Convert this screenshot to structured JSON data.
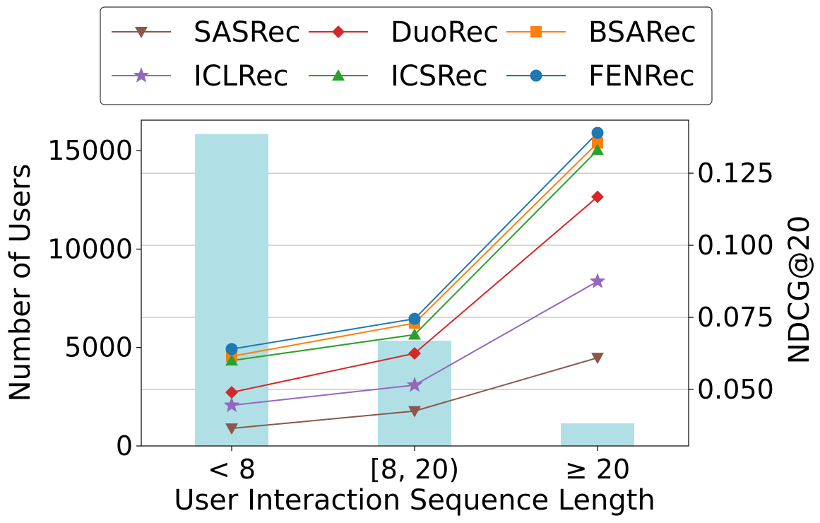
{
  "chart_data": {
    "type": "bar+line",
    "categories": [
      "< 8",
      "[8, 20)",
      "≥ 20"
    ],
    "xlabel": "User Interaction Sequence Length",
    "bars": {
      "name": "Number of Users",
      "values": [
        15850,
        5350,
        1150
      ],
      "color": "#b0e0e6"
    },
    "ylabel_left": "Number of Users",
    "ylim_left": [
      0,
      16550
    ],
    "yticks_left": [
      0,
      5000,
      10000,
      15000
    ],
    "ylabel_right": "NDCG@20",
    "ylim_right": [
      0.0304,
      0.1434
    ],
    "yticks_right": [
      0.05,
      0.075,
      0.1,
      0.125
    ],
    "ytick_labels_right": [
      "0.050",
      "0.075",
      "0.100",
      "0.125"
    ],
    "grid": "horizontal (right axis)",
    "legend_position": "top, outside",
    "series": [
      {
        "name": "SASRec",
        "values": [
          0.0365,
          0.0425,
          0.061
        ],
        "color": "#8c564b",
        "marker": "triangle-down"
      },
      {
        "name": "DuoRec",
        "values": [
          0.049,
          0.0625,
          0.1168
        ],
        "color": "#d62728",
        "marker": "diamond"
      },
      {
        "name": "BSARec",
        "values": [
          0.0615,
          0.073,
          0.1355
        ],
        "color": "#ff7f0e",
        "marker": "square"
      },
      {
        "name": "ICLRec",
        "values": [
          0.0445,
          0.0515,
          0.0875
        ],
        "color": "#9467bd",
        "marker": "star"
      },
      {
        "name": "ICSRec",
        "values": [
          0.06,
          0.069,
          0.133
        ],
        "color": "#2ca02c",
        "marker": "triangle-up"
      },
      {
        "name": "FENRec",
        "values": [
          0.064,
          0.0745,
          0.139
        ],
        "color": "#1f77b4",
        "marker": "circle"
      }
    ]
  }
}
